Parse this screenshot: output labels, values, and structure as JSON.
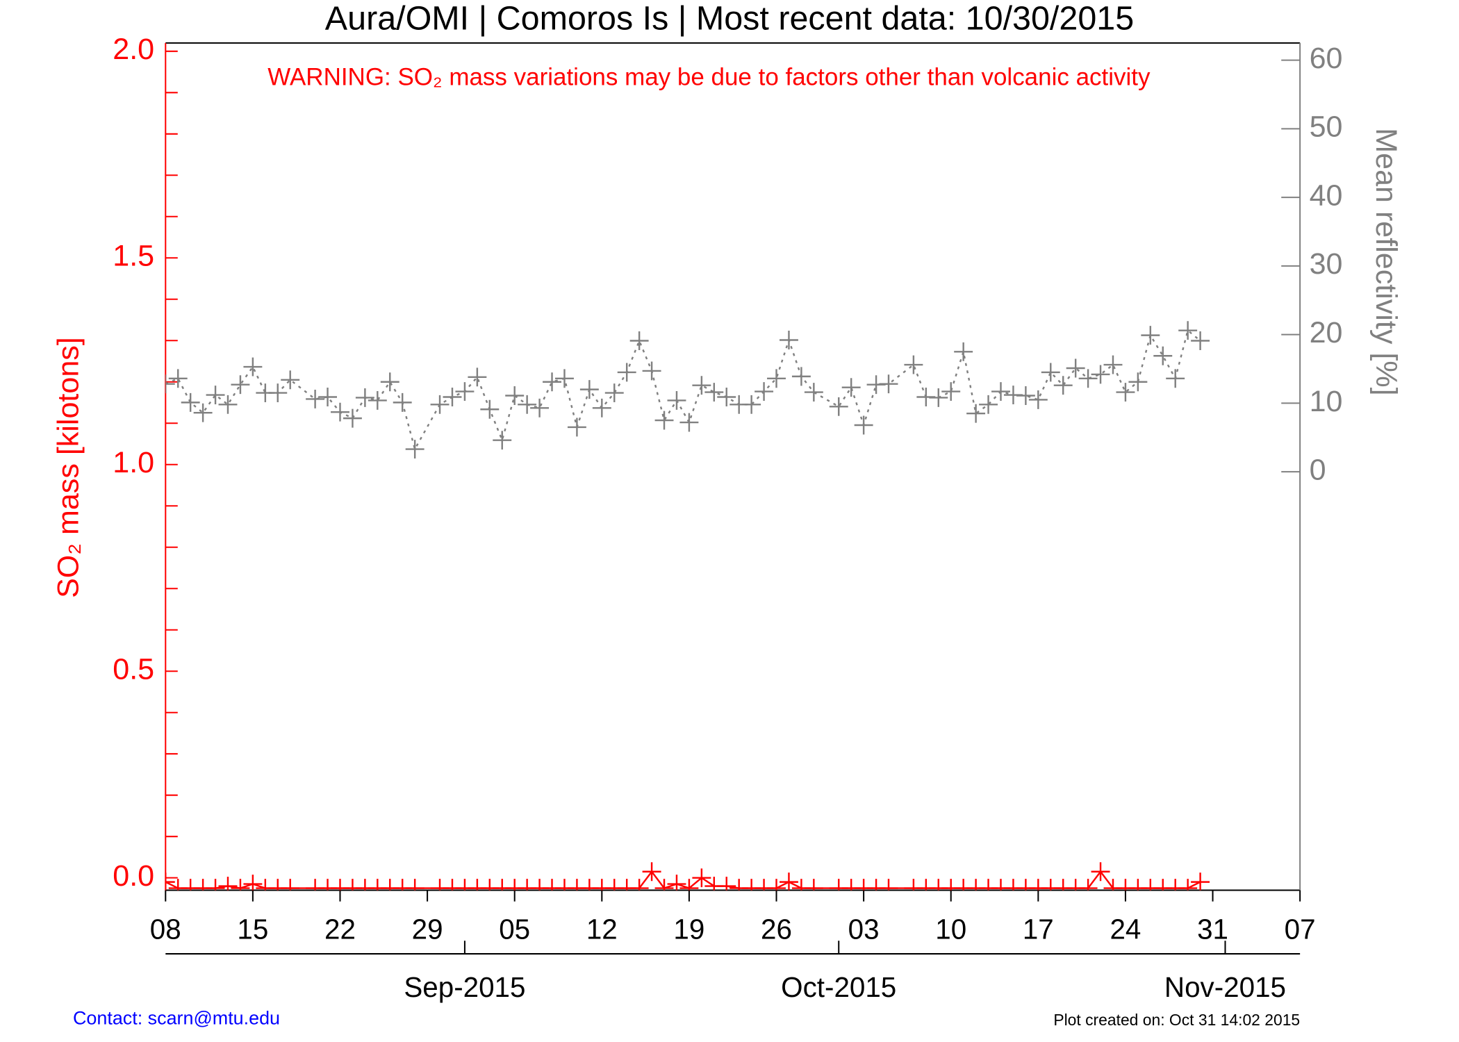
{
  "chart_data": {
    "type": "line",
    "title": "Aura/OMI | Comoros Is | Most recent data: 10/30/2015",
    "annotation": "WARNING: SO₂ mass variations may be due to factors other than volcanic activity",
    "ylabel": "SO₂ mass [kilotons]",
    "y2label": "Mean reflectivity [%]",
    "contact": "Contact: scarn@mtu.edu",
    "created": "Plot created on: Oct 31 14:02 2015",
    "x": [
      "2015-08-08",
      "2015-08-09",
      "2015-08-10",
      "2015-08-11",
      "2015-08-12",
      "2015-08-13",
      "2015-08-14",
      "2015-08-15",
      "2015-08-16",
      "2015-08-17",
      "2015-08-18",
      "2015-08-20",
      "2015-08-21",
      "2015-08-22",
      "2015-08-23",
      "2015-08-24",
      "2015-08-25",
      "2015-08-26",
      "2015-08-27",
      "2015-08-28",
      "2015-08-30",
      "2015-08-31",
      "2015-09-01",
      "2015-09-02",
      "2015-09-03",
      "2015-09-04",
      "2015-09-05",
      "2015-09-06",
      "2015-09-07",
      "2015-09-08",
      "2015-09-09",
      "2015-09-10",
      "2015-09-11",
      "2015-09-12",
      "2015-09-13",
      "2015-09-14",
      "2015-09-15",
      "2015-09-16",
      "2015-09-17",
      "2015-09-18",
      "2015-09-19",
      "2015-09-20",
      "2015-09-21",
      "2015-09-22",
      "2015-09-23",
      "2015-09-24",
      "2015-09-25",
      "2015-09-26",
      "2015-09-27",
      "2015-09-28",
      "2015-09-29",
      "2015-10-01",
      "2015-10-02",
      "2015-10-03",
      "2015-10-04",
      "2015-10-05",
      "2015-10-07",
      "2015-10-08",
      "2015-10-09",
      "2015-10-10",
      "2015-10-11",
      "2015-10-12",
      "2015-10-13",
      "2015-10-14",
      "2015-10-15",
      "2015-10-16",
      "2015-10-17",
      "2015-10-18",
      "2015-10-19",
      "2015-10-20",
      "2015-10-21",
      "2015-10-22",
      "2015-10-23",
      "2015-10-24",
      "2015-10-25",
      "2015-10-26",
      "2015-10-27",
      "2015-10-28",
      "2015-10-29",
      "2015-10-30"
    ],
    "series": [
      {
        "name": "SO₂ mass",
        "color": "#ff0000",
        "axis": "y",
        "line_style": "solid",
        "values": [
          -0.01,
          -0.025,
          -0.025,
          -0.025,
          -0.025,
          -0.02,
          -0.025,
          -0.015,
          -0.025,
          -0.025,
          -0.025,
          -0.025,
          -0.025,
          -0.025,
          -0.025,
          -0.025,
          -0.025,
          -0.025,
          -0.025,
          -0.025,
          -0.025,
          -0.025,
          -0.025,
          -0.025,
          -0.025,
          -0.025,
          -0.025,
          -0.025,
          -0.025,
          -0.025,
          -0.025,
          -0.025,
          -0.025,
          -0.025,
          -0.025,
          -0.025,
          -0.025,
          0.015,
          -0.025,
          -0.015,
          -0.025,
          0.0,
          -0.02,
          -0.02,
          -0.025,
          -0.025,
          -0.025,
          -0.025,
          -0.01,
          -0.025,
          -0.025,
          -0.025,
          -0.025,
          -0.025,
          -0.025,
          -0.025,
          -0.025,
          -0.025,
          -0.025,
          -0.025,
          -0.025,
          -0.025,
          -0.025,
          -0.025,
          -0.025,
          -0.025,
          -0.025,
          -0.025,
          -0.025,
          -0.025,
          -0.025,
          0.015,
          -0.025,
          -0.025,
          -0.025,
          -0.025,
          -0.025,
          -0.025,
          -0.025,
          -0.01
        ]
      },
      {
        "name": "Mean reflectivity",
        "color": "#808080",
        "axis": "y2",
        "line_style": "dotted",
        "values": [
          12.8,
          13.6,
          10.1,
          8.6,
          11.2,
          9.8,
          12.7,
          15.3,
          11.5,
          11.5,
          13.4,
          10.6,
          10.9,
          8.7,
          7.8,
          10.8,
          10.4,
          13.1,
          10.1,
          3.3,
          9.8,
          10.9,
          11.7,
          13.8,
          9.1,
          4.6,
          11.1,
          9.8,
          9.3,
          13.1,
          13.6,
          6.5,
          12.0,
          9.3,
          11.5,
          14.5,
          19.1,
          14.7,
          7.5,
          10.4,
          7.2,
          12.6,
          11.6,
          10.9,
          9.8,
          9.8,
          11.7,
          13.6,
          19.2,
          13.9,
          11.6,
          9.5,
          12.3,
          6.8,
          12.7,
          12.8,
          15.6,
          10.9,
          10.8,
          11.7,
          17.5,
          8.5,
          9.8,
          11.7,
          11.2,
          11.1,
          10.5,
          14.5,
          12.6,
          15.1,
          13.6,
          14.2,
          15.6,
          11.6,
          13.1,
          19.9,
          16.9,
          13.6,
          20.6,
          19.1
        ]
      }
    ],
    "xlim": [
      "2015-08-08",
      "2015-11-07"
    ],
    "xticks": [
      {
        "value": "2015-08-08",
        "label": "08"
      },
      {
        "value": "2015-08-15",
        "label": "15"
      },
      {
        "value": "2015-08-22",
        "label": "22"
      },
      {
        "value": "2015-08-29",
        "label": "29"
      },
      {
        "value": "2015-09-05",
        "label": "05"
      },
      {
        "value": "2015-09-12",
        "label": "12"
      },
      {
        "value": "2015-09-19",
        "label": "19"
      },
      {
        "value": "2015-09-26",
        "label": "26"
      },
      {
        "value": "2015-10-03",
        "label": "03"
      },
      {
        "value": "2015-10-10",
        "label": "10"
      },
      {
        "value": "2015-10-17",
        "label": "17"
      },
      {
        "value": "2015-10-24",
        "label": "24"
      },
      {
        "value": "2015-10-31",
        "label": "31"
      },
      {
        "value": "2015-11-07",
        "label": "07"
      }
    ],
    "month_ticks": [
      {
        "value": "2015-09-01",
        "label": "Sep-2015"
      },
      {
        "value": "2015-10-01",
        "label": "Oct-2015"
      },
      {
        "value": "2015-11-01",
        "label": "Nov-2015"
      }
    ],
    "ylim": [
      -0.03,
      2.02
    ],
    "yticks": [
      {
        "value": 0,
        "label": "0.0"
      },
      0.5,
      {
        "value": 1,
        "label": "1.0"
      },
      1.5,
      {
        "value": 2,
        "label": "2.0"
      }
    ],
    "yminorticks": [
      0.1,
      0.2,
      0.3,
      0.4,
      0.6,
      0.7,
      0.8,
      0.9,
      1.1,
      1.2,
      1.3,
      1.4,
      1.6,
      1.7,
      1.8,
      1.9
    ],
    "y2lim": [
      -61,
      62.5
    ],
    "y2ticks": [
      0,
      10,
      20,
      30,
      40,
      50,
      60
    ],
    "left_axis_color": "#ff0000",
    "right_axis_color": "#808080"
  }
}
